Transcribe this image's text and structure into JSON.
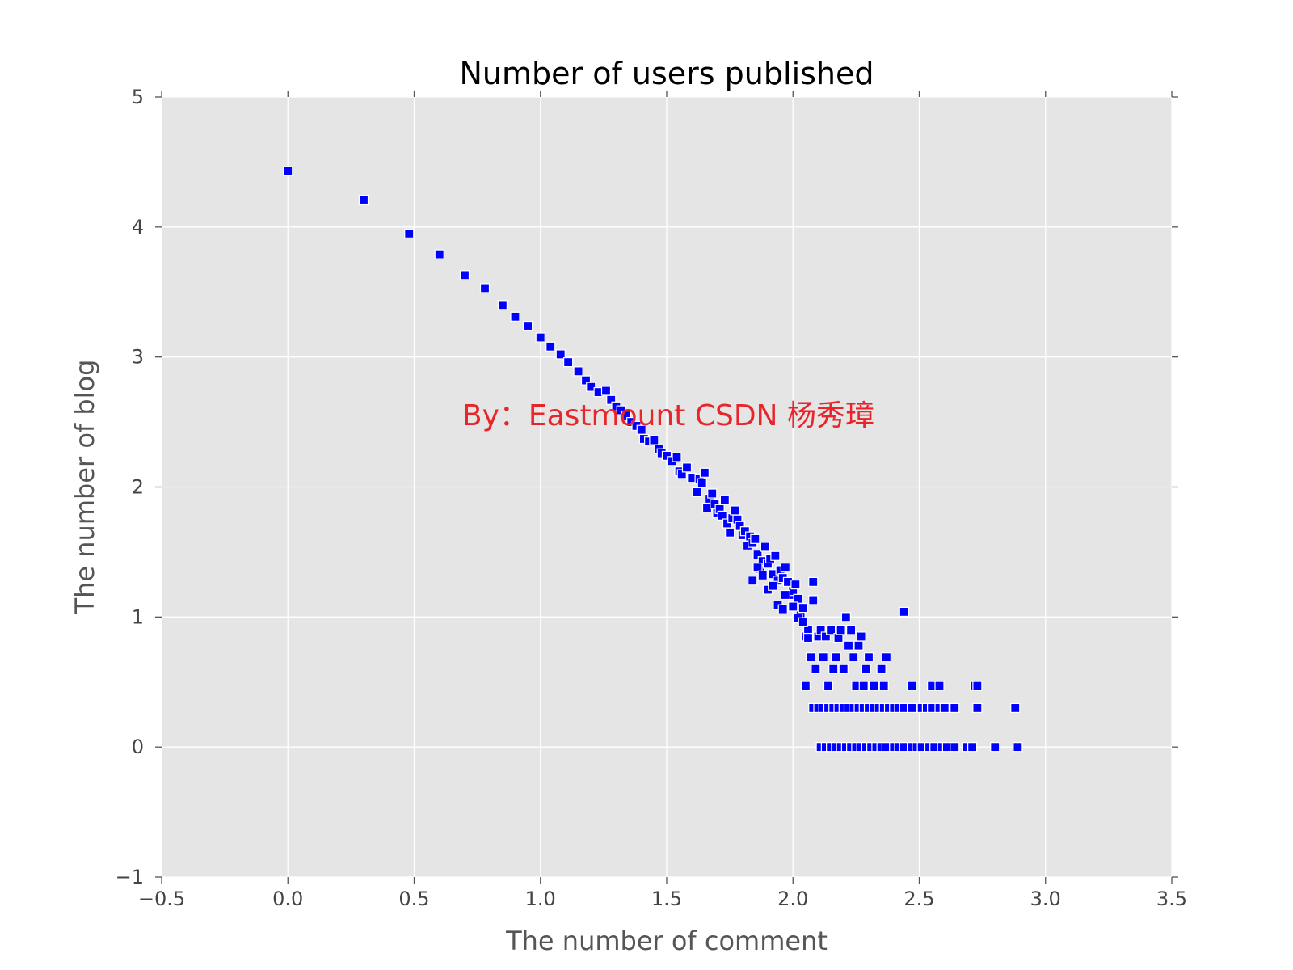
{
  "chart_data": {
    "type": "scatter",
    "title": "Number of users published",
    "xlabel": "The number of comment",
    "ylabel": "The number of blog",
    "xlim": [
      -0.5,
      3.5
    ],
    "ylim": [
      -1,
      5
    ],
    "xticks": [
      "−0.5",
      "0.0",
      "0.5",
      "1.0",
      "1.5",
      "2.0",
      "2.5",
      "3.0",
      "3.5"
    ],
    "xtick_values": [
      -0.5,
      0.0,
      0.5,
      1.0,
      1.5,
      2.0,
      2.5,
      3.0,
      3.5
    ],
    "yticks": [
      "−1",
      "0",
      "1",
      "2",
      "3",
      "4",
      "5"
    ],
    "ytick_values": [
      -1,
      0,
      1,
      2,
      3,
      4,
      5
    ],
    "grid": true,
    "background": "#e5e5e5",
    "marker": "square",
    "marker_color": "#0000ff",
    "annotation": {
      "text": "By：Eastmount CSDN 杨秀璋",
      "x": 0.69,
      "y": 2.55,
      "color": "#e8252b"
    },
    "points": [
      [
        0.0,
        4.43
      ],
      [
        0.3,
        4.21
      ],
      [
        0.48,
        3.95
      ],
      [
        0.6,
        3.79
      ],
      [
        0.7,
        3.63
      ],
      [
        0.78,
        3.53
      ],
      [
        0.85,
        3.4
      ],
      [
        0.9,
        3.31
      ],
      [
        0.95,
        3.24
      ],
      [
        1.0,
        3.15
      ],
      [
        1.04,
        3.08
      ],
      [
        1.08,
        3.02
      ],
      [
        1.11,
        2.96
      ],
      [
        1.15,
        2.89
      ],
      [
        1.18,
        2.82
      ],
      [
        1.2,
        2.77
      ],
      [
        1.23,
        2.73
      ],
      [
        1.26,
        2.74
      ],
      [
        1.28,
        2.67
      ],
      [
        1.3,
        2.62
      ],
      [
        1.32,
        2.59
      ],
      [
        1.34,
        2.55
      ],
      [
        1.36,
        2.5
      ],
      [
        1.38,
        2.47
      ],
      [
        1.4,
        2.44
      ],
      [
        1.41,
        2.37
      ],
      [
        1.43,
        2.35
      ],
      [
        1.45,
        2.36
      ],
      [
        1.47,
        2.29
      ],
      [
        1.48,
        2.26
      ],
      [
        1.5,
        2.24
      ],
      [
        1.52,
        2.2
      ],
      [
        1.54,
        2.23
      ],
      [
        1.55,
        2.12
      ],
      [
        1.56,
        2.1
      ],
      [
        1.58,
        2.15
      ],
      [
        1.6,
        2.07
      ],
      [
        1.62,
        1.96
      ],
      [
        1.63,
        2.06
      ],
      [
        1.64,
        2.03
      ],
      [
        1.65,
        2.11
      ],
      [
        1.66,
        1.84
      ],
      [
        1.67,
        1.91
      ],
      [
        1.68,
        1.95
      ],
      [
        1.69,
        1.87
      ],
      [
        1.7,
        1.8
      ],
      [
        1.71,
        1.83
      ],
      [
        1.72,
        1.78
      ],
      [
        1.73,
        1.9
      ],
      [
        1.74,
        1.72
      ],
      [
        1.75,
        1.65
      ],
      [
        1.76,
        1.76
      ],
      [
        1.77,
        1.82
      ],
      [
        1.78,
        1.75
      ],
      [
        1.79,
        1.7
      ],
      [
        1.8,
        1.63
      ],
      [
        1.81,
        1.66
      ],
      [
        1.82,
        1.55
      ],
      [
        1.83,
        1.62
      ],
      [
        1.84,
        1.57
      ],
      [
        1.85,
        1.6
      ],
      [
        1.86,
        1.48
      ],
      [
        1.87,
        1.37
      ],
      [
        1.88,
        1.43
      ],
      [
        1.89,
        1.54
      ],
      [
        1.9,
        1.41
      ],
      [
        1.91,
        1.45
      ],
      [
        1.92,
        1.33
      ],
      [
        1.93,
        1.47
      ],
      [
        1.94,
        1.28
      ],
      [
        1.95,
        1.36
      ],
      [
        1.96,
        1.3
      ],
      [
        1.97,
        1.38
      ],
      [
        1.98,
        1.27
      ],
      [
        1.99,
        1.17
      ],
      [
        2.0,
        1.2
      ],
      [
        2.01,
        1.25
      ],
      [
        2.02,
        1.14
      ],
      [
        2.03,
        1.03
      ],
      [
        2.04,
        1.07
      ],
      [
        2.05,
        0.85
      ],
      [
        2.06,
        0.9
      ],
      [
        2.07,
        0.69
      ],
      [
        2.08,
        1.27
      ],
      [
        2.09,
        0.6
      ],
      [
        1.84,
        1.28
      ],
      [
        1.86,
        1.38
      ],
      [
        1.88,
        1.32
      ],
      [
        1.9,
        1.21
      ],
      [
        1.92,
        1.24
      ],
      [
        1.94,
        1.09
      ],
      [
        1.96,
        1.06
      ],
      [
        1.97,
        1.17
      ],
      [
        2.0,
        1.08
      ],
      [
        2.02,
        0.99
      ],
      [
        2.04,
        0.96
      ],
      [
        2.06,
        0.84
      ],
      [
        2.08,
        1.13
      ],
      [
        2.05,
        0.47
      ],
      [
        2.1,
        0.85
      ],
      [
        2.11,
        0.9
      ],
      [
        2.12,
        0.69
      ],
      [
        2.13,
        0.85
      ],
      [
        2.14,
        0.47
      ],
      [
        2.15,
        0.9
      ],
      [
        2.16,
        0.6
      ],
      [
        2.17,
        0.69
      ],
      [
        2.18,
        0.84
      ],
      [
        2.19,
        0.9
      ],
      [
        2.2,
        0.6
      ],
      [
        2.21,
        1.0
      ],
      [
        2.22,
        0.78
      ],
      [
        2.23,
        0.9
      ],
      [
        2.24,
        0.69
      ],
      [
        2.25,
        0.47
      ],
      [
        2.26,
        0.78
      ],
      [
        2.27,
        0.85
      ],
      [
        2.28,
        0.47
      ],
      [
        2.29,
        0.6
      ],
      [
        2.3,
        0.69
      ],
      [
        2.32,
        0.47
      ],
      [
        2.35,
        0.6
      ],
      [
        2.36,
        0.47
      ],
      [
        2.37,
        0.69
      ],
      [
        2.44,
        1.04
      ],
      [
        2.47,
        0.47
      ],
      [
        2.55,
        0.47
      ],
      [
        2.58,
        0.47
      ],
      [
        2.72,
        0.47
      ],
      [
        2.73,
        0.47
      ],
      [
        2.08,
        0.3
      ],
      [
        2.1,
        0.3
      ],
      [
        2.12,
        0.3
      ],
      [
        2.14,
        0.3
      ],
      [
        2.16,
        0.3
      ],
      [
        2.18,
        0.3
      ],
      [
        2.2,
        0.3
      ],
      [
        2.22,
        0.3
      ],
      [
        2.24,
        0.3
      ],
      [
        2.26,
        0.3
      ],
      [
        2.28,
        0.3
      ],
      [
        2.3,
        0.3
      ],
      [
        2.32,
        0.3
      ],
      [
        2.34,
        0.3
      ],
      [
        2.36,
        0.3
      ],
      [
        2.38,
        0.3
      ],
      [
        2.4,
        0.3
      ],
      [
        2.42,
        0.3
      ],
      [
        2.44,
        0.3
      ],
      [
        2.47,
        0.3
      ],
      [
        2.51,
        0.3
      ],
      [
        2.53,
        0.3
      ],
      [
        2.55,
        0.3
      ],
      [
        2.58,
        0.3
      ],
      [
        2.6,
        0.3
      ],
      [
        2.64,
        0.3
      ],
      [
        2.73,
        0.3
      ],
      [
        2.88,
        0.3
      ],
      [
        2.11,
        0.0
      ],
      [
        2.13,
        0.0
      ],
      [
        2.15,
        0.0
      ],
      [
        2.17,
        0.0
      ],
      [
        2.19,
        0.0
      ],
      [
        2.21,
        0.0
      ],
      [
        2.23,
        0.0
      ],
      [
        2.25,
        0.0
      ],
      [
        2.27,
        0.0
      ],
      [
        2.29,
        0.0
      ],
      [
        2.31,
        0.0
      ],
      [
        2.33,
        0.0
      ],
      [
        2.35,
        0.0
      ],
      [
        2.37,
        0.0
      ],
      [
        2.4,
        0.0
      ],
      [
        2.42,
        0.0
      ],
      [
        2.44,
        0.0
      ],
      [
        2.47,
        0.0
      ],
      [
        2.49,
        0.0
      ],
      [
        2.51,
        0.0
      ],
      [
        2.54,
        0.0
      ],
      [
        2.56,
        0.0
      ],
      [
        2.59,
        0.0
      ],
      [
        2.61,
        0.0
      ],
      [
        2.64,
        0.0
      ],
      [
        2.69,
        0.0
      ],
      [
        2.71,
        0.0
      ],
      [
        2.8,
        0.0
      ],
      [
        2.89,
        0.0
      ]
    ]
  }
}
